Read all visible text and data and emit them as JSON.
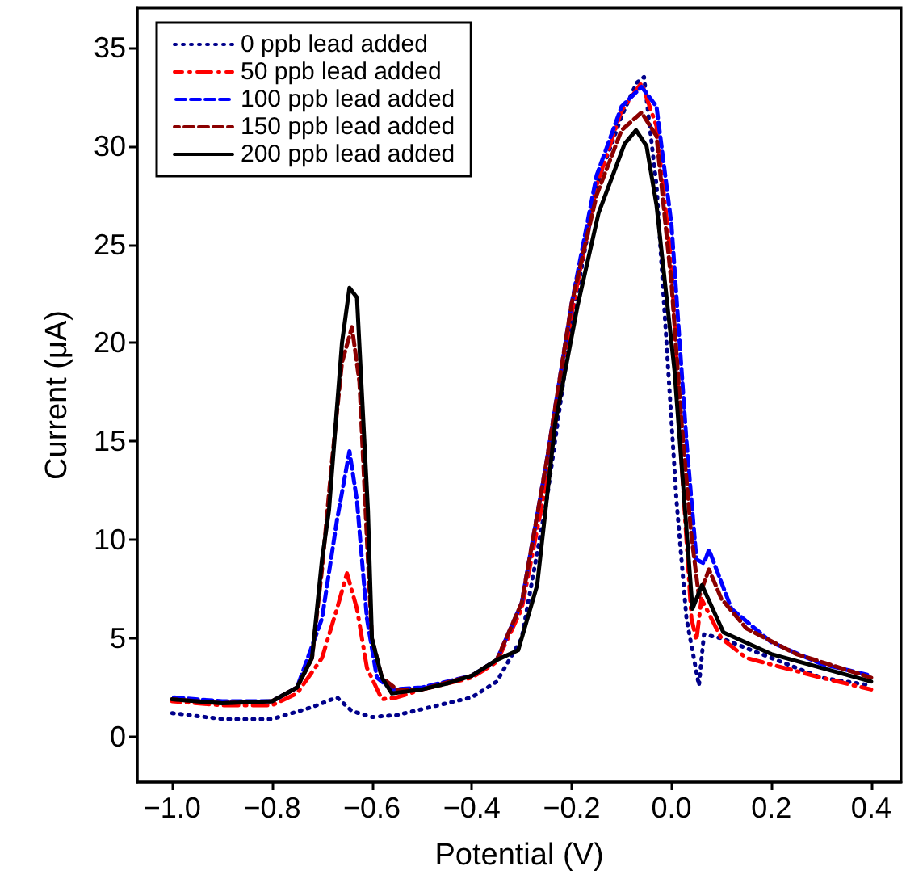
{
  "chart_data": {
    "type": "line",
    "xlabel": "Potential (V)",
    "ylabel": "Current (μA)",
    "xlim": [
      -1.07,
      0.46
    ],
    "ylim": [
      -2.3,
      37
    ],
    "xticks": [
      {
        "value": -1.0,
        "label": "−1.0"
      },
      {
        "value": -0.8,
        "label": "−0.8"
      },
      {
        "value": -0.6,
        "label": "−0.6"
      },
      {
        "value": -0.4,
        "label": "−0.4"
      },
      {
        "value": -0.2,
        "label": "−0.2"
      },
      {
        "value": 0,
        "label": "0.0"
      },
      {
        "value": 0.2,
        "label": "0.2"
      },
      {
        "value": 0.4,
        "label": "0.4"
      }
    ],
    "yticks": [
      0,
      5,
      10,
      15,
      20,
      25,
      30,
      35
    ],
    "grid": false,
    "legend": "top left",
    "marker": "none",
    "series": [
      {
        "name": "0 ppb lead added",
        "color": "#00008b",
        "line_style": "dotted",
        "x": [
          -1.0,
          -0.9,
          -0.8,
          -0.72,
          -0.67,
          -0.64,
          -0.6,
          -0.55,
          -0.5,
          -0.4,
          -0.35,
          -0.3,
          -0.25,
          -0.2,
          -0.15,
          -0.1,
          -0.07,
          -0.055,
          -0.03,
          -0.01,
          0.01,
          0.03,
          0.055,
          0.065,
          0.1,
          0.2,
          0.3,
          0.4
        ],
        "values": [
          1.2,
          0.9,
          0.9,
          1.5,
          2.0,
          1.3,
          1.0,
          1.1,
          1.4,
          2.0,
          2.8,
          5.0,
          12,
          21,
          28,
          31.5,
          33.2,
          33.5,
          28,
          20,
          12,
          6,
          2.6,
          5.2,
          5.0,
          4.0,
          3.0,
          2.6
        ]
      },
      {
        "name": "50 ppb lead added",
        "color": "#ff0000",
        "line_style": "dashdot",
        "x": [
          -1.0,
          -0.9,
          -0.8,
          -0.75,
          -0.7,
          -0.67,
          -0.65,
          -0.63,
          -0.61,
          -0.58,
          -0.55,
          -0.5,
          -0.4,
          -0.35,
          -0.3,
          -0.25,
          -0.2,
          -0.15,
          -0.1,
          -0.06,
          -0.03,
          0.0,
          0.02,
          0.04,
          0.05,
          0.06,
          0.1,
          0.15,
          0.3,
          0.4
        ],
        "values": [
          1.8,
          1.6,
          1.6,
          2.2,
          4.0,
          6.5,
          8.3,
          6.5,
          3.5,
          1.9,
          2.0,
          2.4,
          3.0,
          3.8,
          6.5,
          13,
          21.5,
          28,
          31.8,
          33.2,
          31,
          24,
          14,
          6,
          4.9,
          7.0,
          5.0,
          4.0,
          3.0,
          2.4
        ]
      },
      {
        "name": "100 ppb lead added",
        "color": "#0000ff",
        "line_style": "dashed",
        "x": [
          -1.0,
          -0.9,
          -0.8,
          -0.75,
          -0.7,
          -0.67,
          -0.645,
          -0.63,
          -0.61,
          -0.59,
          -0.56,
          -0.5,
          -0.4,
          -0.35,
          -0.3,
          -0.25,
          -0.2,
          -0.15,
          -0.1,
          -0.06,
          -0.03,
          0.0,
          0.03,
          0.05,
          0.065,
          0.075,
          0.12,
          0.2,
          0.3,
          0.4
        ],
        "values": [
          2.0,
          1.8,
          1.8,
          2.5,
          6.0,
          11,
          14.5,
          12,
          6,
          3.0,
          2.4,
          2.5,
          3.1,
          3.9,
          6.8,
          14,
          22,
          28.5,
          32,
          33,
          32,
          26,
          15,
          9,
          8.8,
          9.5,
          6.5,
          4.8,
          3.7,
          3.1
        ]
      },
      {
        "name": "150 ppb lead added",
        "color": "#8b0000",
        "line_style": "dashed",
        "x": [
          -1.0,
          -0.9,
          -0.8,
          -0.75,
          -0.72,
          -0.7,
          -0.68,
          -0.66,
          -0.64,
          -0.625,
          -0.61,
          -0.6,
          -0.58,
          -0.55,
          -0.5,
          -0.4,
          -0.35,
          -0.3,
          -0.25,
          -0.2,
          -0.15,
          -0.1,
          -0.06,
          -0.03,
          0.0,
          0.02,
          0.039,
          0.055,
          0.075,
          0.1,
          0.15,
          0.25,
          0.4
        ],
        "values": [
          1.9,
          1.7,
          1.8,
          2.5,
          4,
          8.5,
          14,
          19,
          20.8,
          18,
          10,
          5,
          3.0,
          2.4,
          2.4,
          3.1,
          3.9,
          6.8,
          14,
          22,
          27.5,
          30.8,
          31.7,
          30.5,
          23,
          16,
          10.4,
          7.1,
          8.5,
          7.0,
          5.5,
          4.2,
          3.0
        ]
      },
      {
        "name": "200 ppb lead added",
        "color": "#000000",
        "line_style": "solid",
        "x": [
          -1.0,
          -0.9,
          -0.8,
          -0.75,
          -0.72,
          -0.7,
          -0.686,
          -0.66,
          -0.645,
          -0.63,
          -0.608,
          -0.6,
          -0.58,
          -0.56,
          -0.5,
          -0.45,
          -0.4,
          -0.35,
          -0.307,
          -0.269,
          -0.233,
          -0.188,
          -0.146,
          -0.094,
          -0.071,
          -0.05,
          -0.03,
          0.006,
          0.042,
          0.061,
          0.104,
          0.2,
          0.3,
          0.4
        ],
        "values": [
          1.9,
          1.7,
          1.8,
          2.5,
          4,
          9,
          11.5,
          20,
          22.8,
          22.3,
          11.5,
          5,
          3.0,
          2.2,
          2.4,
          2.7,
          3.1,
          3.9,
          4.4,
          7.7,
          15.9,
          21.9,
          26.6,
          30.1,
          30.8,
          30.0,
          27,
          18.6,
          6.5,
          7.7,
          5.3,
          4.2,
          3.5,
          2.8
        ]
      }
    ]
  }
}
